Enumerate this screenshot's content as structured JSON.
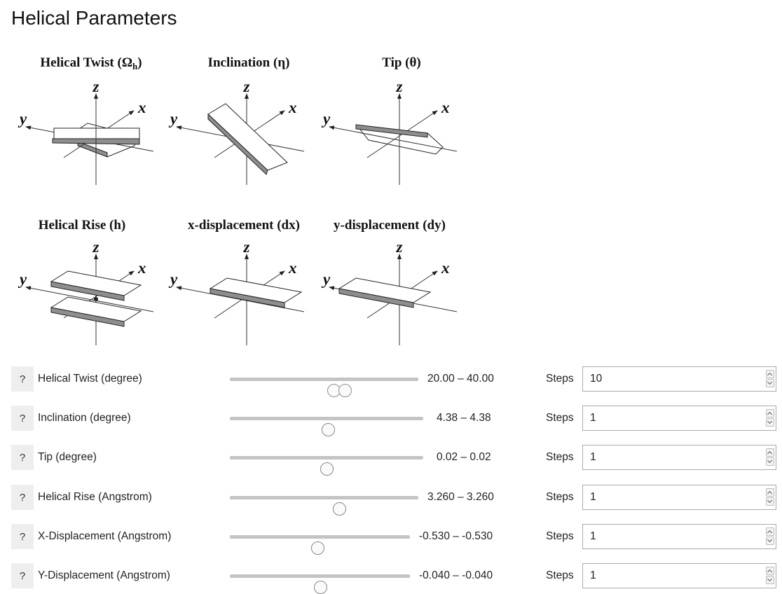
{
  "page": {
    "title": "Helical Parameters"
  },
  "diagrams": [
    {
      "title": "Helical Twist (Ωh)",
      "title_main": "Helical Twist (Ω",
      "title_sub": "h",
      "title_end": ")"
    },
    {
      "title": "Inclination (η)"
    },
    {
      "title": "Tip (θ)"
    },
    {
      "title": "Helical Rise (h)"
    },
    {
      "title": "x-displacement (dx)"
    },
    {
      "title": "y-displacement (dy)"
    }
  ],
  "axes": {
    "x": "x",
    "y": "y",
    "z": "z"
  },
  "parameters": [
    {
      "help": "?",
      "label": "Helical Twist (degree)",
      "range_text": "20.00 – 40.00",
      "low_fraction": 0.555,
      "high_fraction": 0.615,
      "steps_label": "Steps",
      "steps": "10"
    },
    {
      "help": "?",
      "label": "Inclination (degree)",
      "range_text": "4.38 – 4.38",
      "low_fraction": 0.51,
      "high_fraction": 0.51,
      "steps_label": "Steps",
      "steps": "1"
    },
    {
      "help": "?",
      "label": "Tip (degree)",
      "range_text": "0.02 – 0.02",
      "low_fraction": 0.505,
      "high_fraction": 0.505,
      "steps_label": "Steps",
      "steps": "1"
    },
    {
      "help": "?",
      "label": "Helical Rise (Angstrom)",
      "range_text": "3.260 – 3.260",
      "low_fraction": 0.585,
      "high_fraction": 0.585,
      "steps_label": "Steps",
      "steps": "1"
    },
    {
      "help": "?",
      "label": "X-Displacement (Angstrom)",
      "range_text": "-0.530 – -0.530",
      "low_fraction": 0.49,
      "high_fraction": 0.49,
      "steps_label": "Steps",
      "steps": "1"
    },
    {
      "help": "?",
      "label": "Y-Displacement (Angstrom)",
      "range_text": "-0.040 – -0.040",
      "low_fraction": 0.505,
      "high_fraction": 0.505,
      "steps_label": "Steps",
      "steps": "1"
    }
  ],
  "colors": {
    "plate_edge": "#8e8e8e",
    "track": "#c4c4c4",
    "help_bg": "#eeeeee"
  }
}
